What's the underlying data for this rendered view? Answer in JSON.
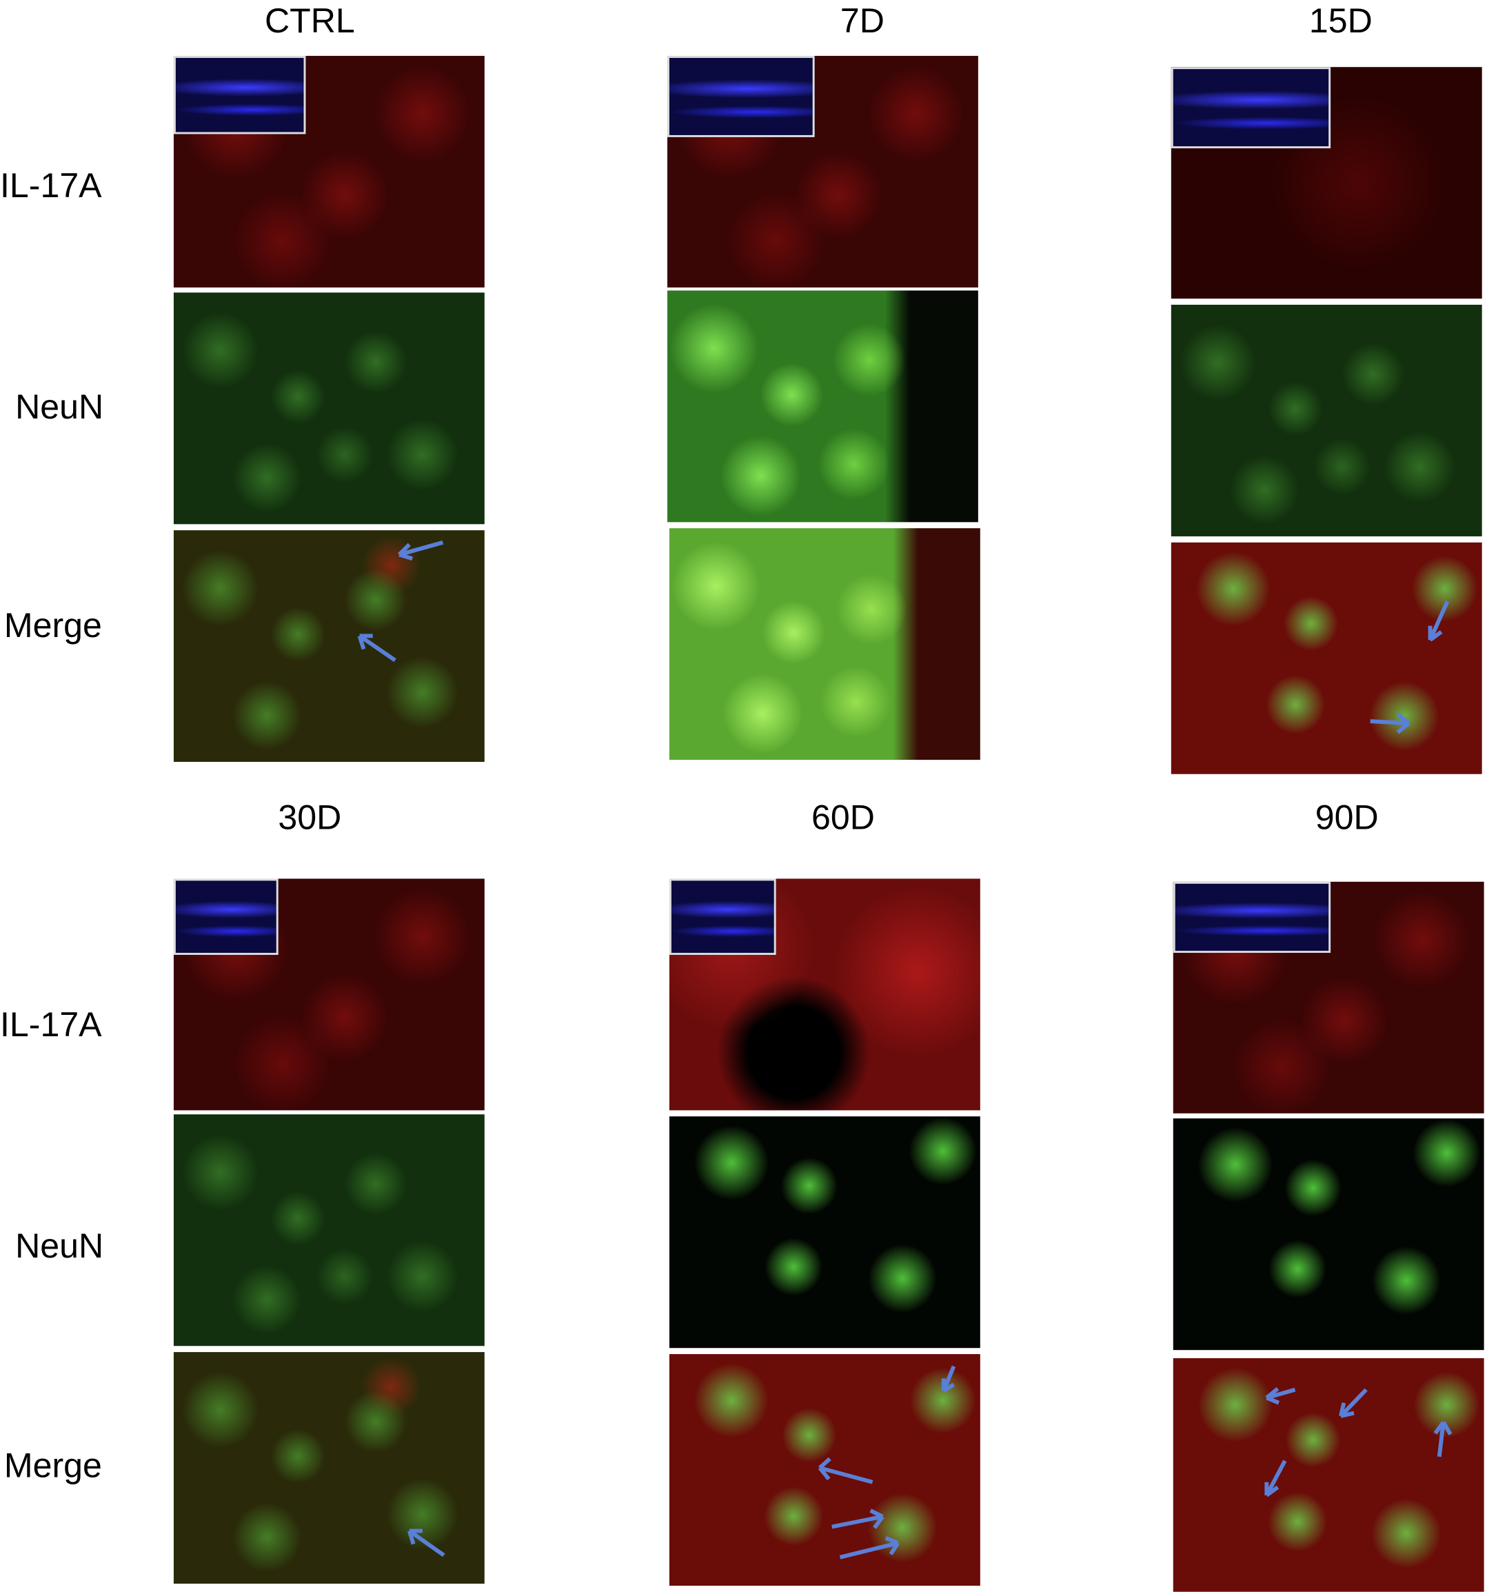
{
  "figure": {
    "columns_top": [
      "CTRL",
      "7D",
      "15D"
    ],
    "columns_bottom": [
      "30D",
      "60D",
      "90D"
    ],
    "row_labels": [
      "IL-17A",
      "NeuN",
      "Merge"
    ],
    "channels": {
      "IL-17A": "red",
      "NeuN": "green",
      "Merge": "red+green",
      "inset": "blue (DAPI)"
    },
    "arrow_color": "#5a7fd8"
  }
}
